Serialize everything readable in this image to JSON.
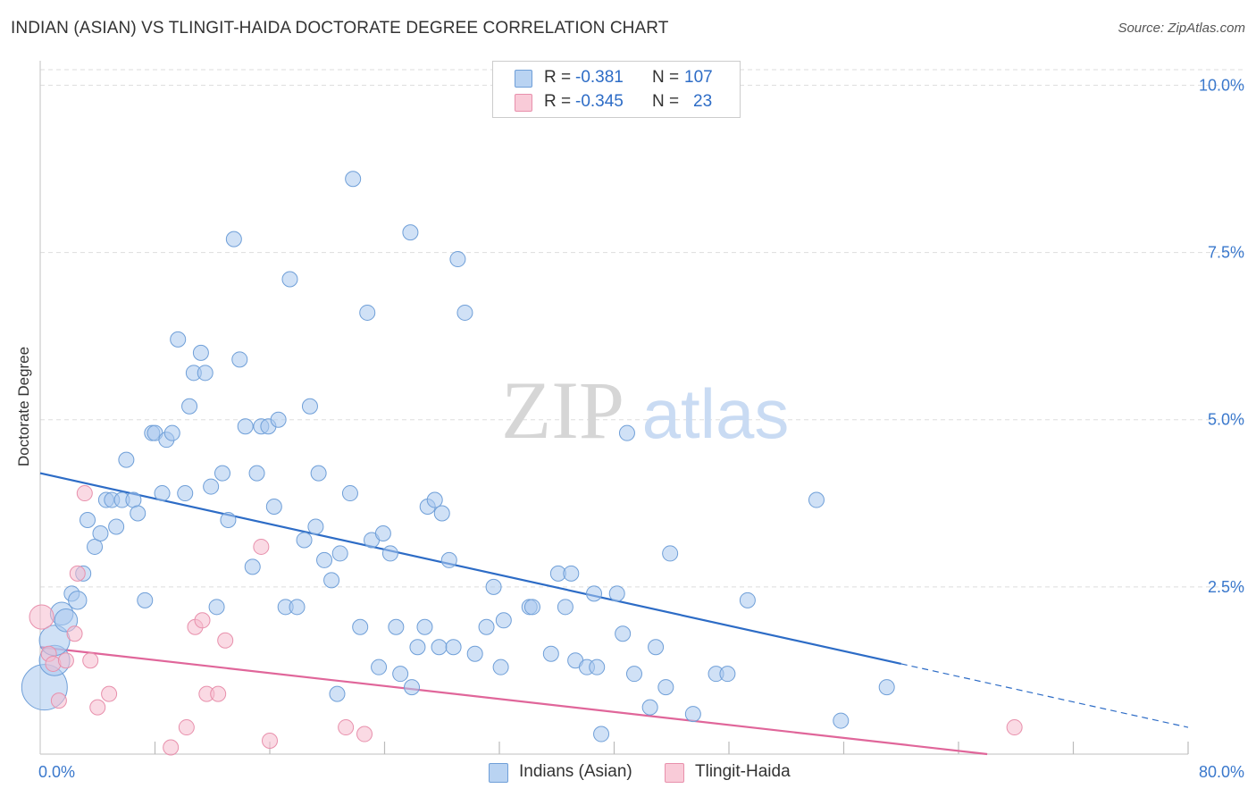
{
  "title": "INDIAN (ASIAN) VS TLINGIT-HAIDA DOCTORATE DEGREE CORRELATION CHART",
  "source": "Source: ZipAtlas.com",
  "watermark": {
    "part1": "ZIP",
    "part2": "atlas"
  },
  "colors": {
    "blue_fill": "#a9c8ef",
    "blue_stroke": "#6f9fd8",
    "blue_line": "#2d6cc6",
    "pink_fill": "#f6bccd",
    "pink_stroke": "#e890ac",
    "pink_line": "#e0669a",
    "axis_text": "#3a78cc",
    "grid": "#dddddd"
  },
  "legend": {
    "rows": [
      {
        "swatch": "blue",
        "r_label": "R =",
        "r_value": "-0.381",
        "n_label": "N =",
        "n_value": "107"
      },
      {
        "swatch": "pink",
        "r_label": "R =",
        "r_value": "-0.345",
        "n_label": "N =",
        "n_value": "23"
      }
    ]
  },
  "bottom_legend": {
    "items": [
      {
        "label": "Indians (Asian)",
        "color": "blue"
      },
      {
        "label": "Tlingit-Haida",
        "color": "pink"
      }
    ]
  },
  "chart_data": {
    "type": "scatter",
    "title": "INDIAN (ASIAN) VS TLINGIT-HAIDA DOCTORATE DEGREE CORRELATION CHART",
    "xlabel": "",
    "ylabel": "Doctorate Degree",
    "xlim": [
      0,
      80
    ],
    "ylim": [
      0,
      10.5
    ],
    "x_tick_labels": [
      {
        "value": 0,
        "label": "0.0%"
      },
      {
        "value": 80,
        "label": "80.0%"
      }
    ],
    "y_tick_labels": [
      {
        "value": 2.5,
        "label": "2.5%"
      },
      {
        "value": 5.0,
        "label": "5.0%"
      },
      {
        "value": 7.5,
        "label": "7.5%"
      },
      {
        "value": 10.0,
        "label": "10.0%"
      }
    ],
    "y_gridlines": [
      2.5,
      5.0,
      7.5,
      10.0
    ],
    "x_tick_marks": [
      8,
      16,
      24,
      32,
      40,
      48,
      56,
      64,
      72,
      80
    ],
    "series": [
      {
        "name": "Indians (Asian)",
        "color": "blue",
        "R": -0.381,
        "N": 107,
        "trend": {
          "x_start": 0,
          "y_start": 4.2,
          "x_solid_end": 60,
          "y_solid_end": 1.35,
          "x_end": 80,
          "y_end": 0.4
        },
        "points": [
          {
            "x": 0.3,
            "y": 1.0,
            "s": 3
          },
          {
            "x": 1.0,
            "y": 1.4,
            "s": 2
          },
          {
            "x": 1.0,
            "y": 1.7,
            "s": 2
          },
          {
            "x": 1.5,
            "y": 2.1,
            "s": 1.5
          },
          {
            "x": 1.8,
            "y": 2.0,
            "s": 1.5
          },
          {
            "x": 2.2,
            "y": 2.4,
            "s": 1
          },
          {
            "x": 2.6,
            "y": 2.3,
            "s": 1.2
          },
          {
            "x": 3.0,
            "y": 2.7,
            "s": 1
          },
          {
            "x": 3.3,
            "y": 3.5,
            "s": 1
          },
          {
            "x": 3.8,
            "y": 3.1,
            "s": 1
          },
          {
            "x": 4.2,
            "y": 3.3,
            "s": 1
          },
          {
            "x": 4.6,
            "y": 3.8,
            "s": 1
          },
          {
            "x": 5.0,
            "y": 3.8,
            "s": 1
          },
          {
            "x": 5.3,
            "y": 3.4,
            "s": 1
          },
          {
            "x": 5.7,
            "y": 3.8,
            "s": 1
          },
          {
            "x": 6.0,
            "y": 4.4,
            "s": 1
          },
          {
            "x": 6.5,
            "y": 3.8,
            "s": 1
          },
          {
            "x": 6.8,
            "y": 3.6,
            "s": 1
          },
          {
            "x": 7.3,
            "y": 2.3,
            "s": 1
          },
          {
            "x": 7.8,
            "y": 4.8,
            "s": 1
          },
          {
            "x": 8.0,
            "y": 4.8,
            "s": 1
          },
          {
            "x": 8.5,
            "y": 3.9,
            "s": 1
          },
          {
            "x": 8.8,
            "y": 4.7,
            "s": 1
          },
          {
            "x": 9.2,
            "y": 4.8,
            "s": 1
          },
          {
            "x": 9.6,
            "y": 6.2,
            "s": 1
          },
          {
            "x": 10.1,
            "y": 3.9,
            "s": 1
          },
          {
            "x": 10.4,
            "y": 5.2,
            "s": 1
          },
          {
            "x": 10.7,
            "y": 5.7,
            "s": 1
          },
          {
            "x": 11.2,
            "y": 6.0,
            "s": 1
          },
          {
            "x": 11.5,
            "y": 5.7,
            "s": 1
          },
          {
            "x": 11.9,
            "y": 4.0,
            "s": 1
          },
          {
            "x": 12.3,
            "y": 2.2,
            "s": 1
          },
          {
            "x": 12.7,
            "y": 4.2,
            "s": 1
          },
          {
            "x": 13.1,
            "y": 3.5,
            "s": 1
          },
          {
            "x": 13.5,
            "y": 7.7,
            "s": 1
          },
          {
            "x": 13.9,
            "y": 5.9,
            "s": 1
          },
          {
            "x": 14.3,
            "y": 4.9,
            "s": 1
          },
          {
            "x": 14.8,
            "y": 2.8,
            "s": 1
          },
          {
            "x": 15.1,
            "y": 4.2,
            "s": 1
          },
          {
            "x": 15.4,
            "y": 4.9,
            "s": 1
          },
          {
            "x": 15.9,
            "y": 4.9,
            "s": 1
          },
          {
            "x": 16.3,
            "y": 3.7,
            "s": 1
          },
          {
            "x": 16.6,
            "y": 5.0,
            "s": 1
          },
          {
            "x": 17.1,
            "y": 2.2,
            "s": 1
          },
          {
            "x": 17.4,
            "y": 7.1,
            "s": 1
          },
          {
            "x": 17.9,
            "y": 2.2,
            "s": 1
          },
          {
            "x": 18.4,
            "y": 3.2,
            "s": 1
          },
          {
            "x": 18.8,
            "y": 5.2,
            "s": 1
          },
          {
            "x": 19.2,
            "y": 3.4,
            "s": 1
          },
          {
            "x": 19.4,
            "y": 4.2,
            "s": 1
          },
          {
            "x": 19.8,
            "y": 2.9,
            "s": 1
          },
          {
            "x": 20.3,
            "y": 2.6,
            "s": 1
          },
          {
            "x": 20.7,
            "y": 0.9,
            "s": 1
          },
          {
            "x": 20.9,
            "y": 3.0,
            "s": 1
          },
          {
            "x": 21.6,
            "y": 3.9,
            "s": 1
          },
          {
            "x": 21.8,
            "y": 8.6,
            "s": 1
          },
          {
            "x": 22.3,
            "y": 1.9,
            "s": 1
          },
          {
            "x": 22.8,
            "y": 6.6,
            "s": 1
          },
          {
            "x": 23.1,
            "y": 3.2,
            "s": 1
          },
          {
            "x": 23.6,
            "y": 1.3,
            "s": 1
          },
          {
            "x": 23.9,
            "y": 3.3,
            "s": 1
          },
          {
            "x": 24.4,
            "y": 3.0,
            "s": 1
          },
          {
            "x": 24.8,
            "y": 1.9,
            "s": 1
          },
          {
            "x": 25.1,
            "y": 1.2,
            "s": 1
          },
          {
            "x": 25.8,
            "y": 7.8,
            "s": 1
          },
          {
            "x": 25.9,
            "y": 1.0,
            "s": 1
          },
          {
            "x": 26.3,
            "y": 1.6,
            "s": 1
          },
          {
            "x": 26.8,
            "y": 1.9,
            "s": 1
          },
          {
            "x": 27.0,
            "y": 3.7,
            "s": 1
          },
          {
            "x": 27.5,
            "y": 3.8,
            "s": 1
          },
          {
            "x": 27.8,
            "y": 1.6,
            "s": 1
          },
          {
            "x": 28.0,
            "y": 3.6,
            "s": 1
          },
          {
            "x": 28.5,
            "y": 2.9,
            "s": 1
          },
          {
            "x": 28.8,
            "y": 1.6,
            "s": 1
          },
          {
            "x": 29.1,
            "y": 7.4,
            "s": 1
          },
          {
            "x": 29.6,
            "y": 6.6,
            "s": 1
          },
          {
            "x": 30.3,
            "y": 1.5,
            "s": 1
          },
          {
            "x": 31.1,
            "y": 1.9,
            "s": 1
          },
          {
            "x": 31.6,
            "y": 2.5,
            "s": 1
          },
          {
            "x": 32.1,
            "y": 1.3,
            "s": 1
          },
          {
            "x": 32.3,
            "y": 2.0,
            "s": 1
          },
          {
            "x": 34.1,
            "y": 2.2,
            "s": 1
          },
          {
            "x": 34.3,
            "y": 2.2,
            "s": 1
          },
          {
            "x": 35.6,
            "y": 1.5,
            "s": 1
          },
          {
            "x": 36.1,
            "y": 2.7,
            "s": 1
          },
          {
            "x": 36.6,
            "y": 2.2,
            "s": 1
          },
          {
            "x": 37.0,
            "y": 2.7,
            "s": 1
          },
          {
            "x": 37.3,
            "y": 1.4,
            "s": 1
          },
          {
            "x": 38.1,
            "y": 1.3,
            "s": 1
          },
          {
            "x": 38.6,
            "y": 2.4,
            "s": 1
          },
          {
            "x": 38.8,
            "y": 1.3,
            "s": 1
          },
          {
            "x": 39.1,
            "y": 0.3,
            "s": 1
          },
          {
            "x": 40.2,
            "y": 2.4,
            "s": 1
          },
          {
            "x": 40.6,
            "y": 1.8,
            "s": 1
          },
          {
            "x": 40.9,
            "y": 4.8,
            "s": 1
          },
          {
            "x": 41.4,
            "y": 1.2,
            "s": 1
          },
          {
            "x": 42.5,
            "y": 0.7,
            "s": 1
          },
          {
            "x": 42.9,
            "y": 1.6,
            "s": 1
          },
          {
            "x": 43.6,
            "y": 1.0,
            "s": 1
          },
          {
            "x": 43.9,
            "y": 3.0,
            "s": 1
          },
          {
            "x": 45.5,
            "y": 0.6,
            "s": 1
          },
          {
            "x": 47.1,
            "y": 1.2,
            "s": 1
          },
          {
            "x": 47.9,
            "y": 1.2,
            "s": 1
          },
          {
            "x": 49.3,
            "y": 2.3,
            "s": 1
          },
          {
            "x": 54.1,
            "y": 3.8,
            "s": 1
          },
          {
            "x": 55.8,
            "y": 0.5,
            "s": 1
          },
          {
            "x": 59.0,
            "y": 1.0,
            "s": 1
          }
        ]
      },
      {
        "name": "Tlingit-Haida",
        "color": "pink",
        "R": -0.345,
        "N": 23,
        "trend": {
          "x_start": 0,
          "y_start": 1.6,
          "x_end": 66,
          "y_end": 0.0
        },
        "points": [
          {
            "x": 0.1,
            "y": 2.05,
            "s": 1.6
          },
          {
            "x": 0.6,
            "y": 1.5,
            "s": 1
          },
          {
            "x": 0.9,
            "y": 1.35,
            "s": 1
          },
          {
            "x": 1.3,
            "y": 0.8,
            "s": 1
          },
          {
            "x": 1.8,
            "y": 1.4,
            "s": 1
          },
          {
            "x": 2.4,
            "y": 1.8,
            "s": 1
          },
          {
            "x": 2.6,
            "y": 2.7,
            "s": 1
          },
          {
            "x": 3.1,
            "y": 3.9,
            "s": 1
          },
          {
            "x": 3.5,
            "y": 1.4,
            "s": 1
          },
          {
            "x": 4.0,
            "y": 0.7,
            "s": 1
          },
          {
            "x": 4.8,
            "y": 0.9,
            "s": 1
          },
          {
            "x": 9.1,
            "y": 0.1,
            "s": 1
          },
          {
            "x": 10.2,
            "y": 0.4,
            "s": 1
          },
          {
            "x": 10.8,
            "y": 1.9,
            "s": 1
          },
          {
            "x": 11.3,
            "y": 2.0,
            "s": 1
          },
          {
            "x": 11.6,
            "y": 0.9,
            "s": 1
          },
          {
            "x": 12.4,
            "y": 0.9,
            "s": 1
          },
          {
            "x": 12.9,
            "y": 1.7,
            "s": 1
          },
          {
            "x": 15.4,
            "y": 3.1,
            "s": 1
          },
          {
            "x": 16.0,
            "y": 0.2,
            "s": 1
          },
          {
            "x": 21.3,
            "y": 0.4,
            "s": 1
          },
          {
            "x": 22.6,
            "y": 0.3,
            "s": 1
          },
          {
            "x": 67.9,
            "y": 0.4,
            "s": 1
          }
        ]
      }
    ]
  }
}
